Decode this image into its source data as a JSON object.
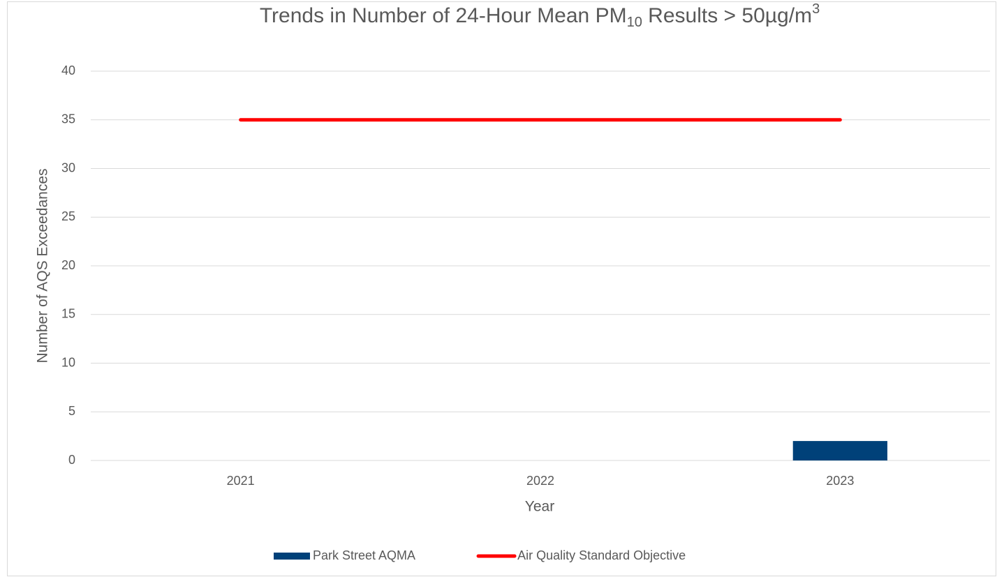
{
  "chart_data": {
    "type": "bar_line",
    "title": [
      "Trends in Number of 24-Hour Mean PM",
      "10",
      " Results > 50µg/m",
      "3"
    ],
    "x_label": "Year",
    "y_label": "Number of AQS Exceedances",
    "categories": [
      "2021",
      "2022",
      "2023"
    ],
    "series": [
      {
        "name": "Park Street AQMA",
        "type": "bar",
        "color": "#004179",
        "values": [
          0,
          0,
          2
        ]
      },
      {
        "name": "Air Quality Standard Objective",
        "type": "line",
        "color": "#ff0000",
        "values": [
          35,
          35,
          35
        ]
      }
    ],
    "ylim": [
      0,
      40
    ],
    "yticks": [
      0,
      5,
      10,
      15,
      20,
      25,
      30,
      35,
      40
    ],
    "grid": true,
    "legend": "bottom"
  }
}
